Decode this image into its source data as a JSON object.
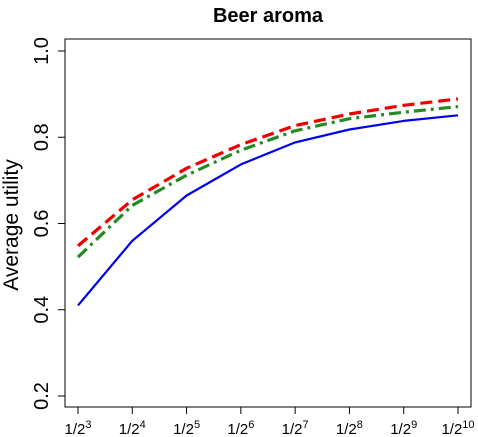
{
  "chart_data": {
    "type": "line",
    "title": "Beer aroma",
    "xlabel": "",
    "ylabel": "Average utility",
    "ylim": [
      0.2,
      1.0
    ],
    "y_ticks": [
      "0.2",
      "0.4",
      "0.6",
      "0.8",
      "1.0"
    ],
    "x_ticks": [
      {
        "base": "1/2",
        "exp": "3"
      },
      {
        "base": "1/2",
        "exp": "4"
      },
      {
        "base": "1/2",
        "exp": "5"
      },
      {
        "base": "1/2",
        "exp": "6"
      },
      {
        "base": "1/2",
        "exp": "7"
      },
      {
        "base": "1/2",
        "exp": "8"
      },
      {
        "base": "1/2",
        "exp": "9"
      },
      {
        "base": "1/2",
        "exp": "10"
      }
    ],
    "x_exponents": [
      3,
      4,
      5,
      6,
      7,
      8,
      9,
      10
    ],
    "grid": false,
    "series": [
      {
        "color": "#0000ee",
        "dash": "solid",
        "values": [
          0.41,
          0.56,
          0.665,
          0.737,
          0.788,
          0.818,
          0.838,
          0.851
        ]
      },
      {
        "color": "#228b22",
        "dash": "dashdot",
        "values": [
          0.522,
          0.642,
          0.712,
          0.77,
          0.815,
          0.843,
          0.858,
          0.871
        ]
      },
      {
        "color": "#ee0000",
        "dash": "dashed",
        "values": [
          0.548,
          0.655,
          0.728,
          0.783,
          0.827,
          0.854,
          0.874,
          0.889
        ]
      }
    ]
  }
}
